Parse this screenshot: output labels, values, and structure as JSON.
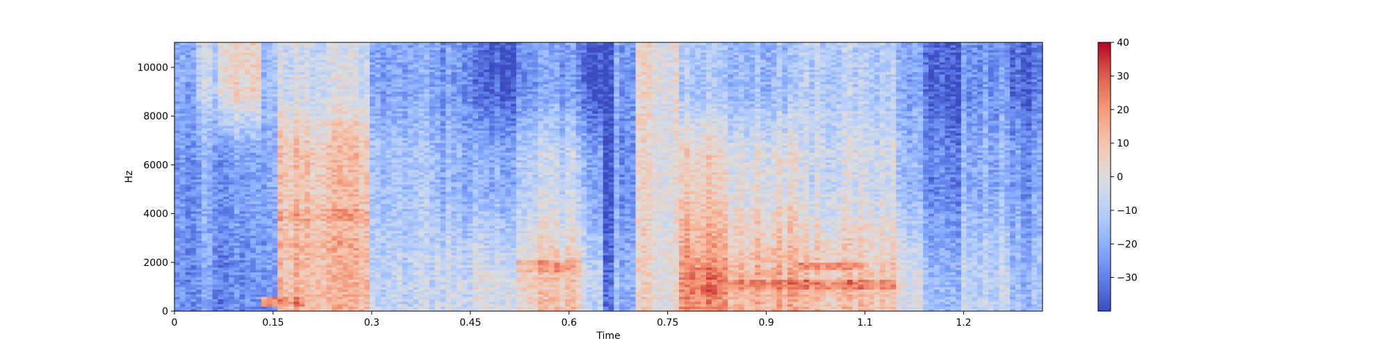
{
  "chart_data": {
    "type": "heatmap",
    "subtype": "spectrogram",
    "title": "",
    "xlabel": "Time",
    "ylabel": "Hz",
    "xlim": [
      0,
      1.32
    ],
    "ylim": [
      0,
      11025
    ],
    "x_ticks": [
      0,
      0.15,
      0.3,
      0.45,
      0.6,
      0.75,
      0.9,
      1.05,
      1.2
    ],
    "x_tick_labels": [
      "0",
      "0.15",
      "0.3",
      "0.45",
      "0.6",
      "0.75",
      "0.9",
      "1.1",
      "1.2"
    ],
    "y_ticks": [
      0,
      2000,
      4000,
      6000,
      8000,
      10000
    ],
    "y_tick_labels": [
      "0",
      "2000",
      "4000",
      "6000",
      "8000",
      "10000"
    ],
    "colormap": "coolwarm",
    "colorbar": {
      "range": [
        -40,
        40
      ],
      "ticks": [
        -30,
        -20,
        -10,
        0,
        10,
        20,
        30,
        40
      ],
      "tick_labels": [
        "−30",
        "−20",
        "−10",
        "0",
        "10",
        "20",
        "30",
        "40"
      ]
    },
    "grid": false,
    "segments": [
      {
        "t": [
          0.0,
          0.03
        ],
        "low_db": -28,
        "mid_db": -26,
        "high_db": -22
      },
      {
        "t": [
          0.03,
          0.07
        ],
        "low_db": -24,
        "mid_db": -22,
        "high_db": -8
      },
      {
        "t": [
          0.07,
          0.13
        ],
        "low_db": -28,
        "mid_db": -24,
        "high_db": 4
      },
      {
        "t": [
          0.13,
          0.16
        ],
        "low_db": -24,
        "mid_db": -20,
        "high_db": -14
      },
      {
        "t": [
          0.16,
          0.3
        ],
        "low_db": 12,
        "mid_db": 10,
        "high_db": -4
      },
      {
        "t": [
          0.3,
          0.4
        ],
        "low_db": -6,
        "mid_db": -12,
        "high_db": -20
      },
      {
        "t": [
          0.4,
          0.45
        ],
        "low_db": -4,
        "mid_db": -18,
        "high_db": -24
      },
      {
        "t": [
          0.45,
          0.52
        ],
        "low_db": -2,
        "mid_db": -20,
        "high_db": -36
      },
      {
        "t": [
          0.52,
          0.62
        ],
        "low_db": 8,
        "mid_db": -8,
        "high_db": -24
      },
      {
        "t": [
          0.62,
          0.65
        ],
        "low_db": -6,
        "mid_db": -20,
        "high_db": -36
      },
      {
        "t": [
          0.65,
          0.67
        ],
        "low_db": -32,
        "mid_db": -38,
        "high_db": -38
      },
      {
        "t": [
          0.67,
          0.7
        ],
        "low_db": -16,
        "mid_db": -24,
        "high_db": -22
      },
      {
        "t": [
          0.7,
          0.77
        ],
        "low_db": 4,
        "mid_db": 2,
        "high_db": 2
      },
      {
        "t": [
          0.77,
          0.84
        ],
        "low_db": 22,
        "mid_db": 6,
        "high_db": -12
      },
      {
        "t": [
          0.84,
          0.95
        ],
        "low_db": 14,
        "mid_db": 0,
        "high_db": -16
      },
      {
        "t": [
          0.95,
          1.1
        ],
        "low_db": 10,
        "mid_db": -4,
        "high_db": -10
      },
      {
        "t": [
          1.1,
          1.14
        ],
        "low_db": 0,
        "mid_db": -16,
        "high_db": -20
      },
      {
        "t": [
          1.14,
          1.2
        ],
        "low_db": -16,
        "mid_db": -28,
        "high_db": -34
      },
      {
        "t": [
          1.2,
          1.27
        ],
        "low_db": -6,
        "mid_db": -18,
        "high_db": -24
      },
      {
        "t": [
          1.27,
          1.32
        ],
        "low_db": -16,
        "mid_db": -24,
        "high_db": -34
      }
    ],
    "peaks": [
      {
        "t": [
          0.16,
          0.3
        ],
        "f": [
          3700,
          4200
        ],
        "db": 22
      },
      {
        "t": [
          0.16,
          0.3
        ],
        "f": [
          2500,
          3000
        ],
        "db": 20
      },
      {
        "t": [
          0.16,
          0.3
        ],
        "f": [
          1900,
          2300
        ],
        "db": 18
      },
      {
        "t": [
          0.13,
          0.2
        ],
        "f": [
          200,
          600
        ],
        "db": 28
      },
      {
        "t": [
          0.78,
          0.84
        ],
        "f": [
          600,
          1800
        ],
        "db": 32
      },
      {
        "t": [
          0.84,
          1.1
        ],
        "f": [
          900,
          1300
        ],
        "db": 30
      },
      {
        "t": [
          0.95,
          1.05
        ],
        "f": [
          1700,
          2000
        ],
        "db": 28
      },
      {
        "t": [
          0.52,
          0.62
        ],
        "f": [
          1600,
          2100
        ],
        "db": 22
      }
    ]
  }
}
